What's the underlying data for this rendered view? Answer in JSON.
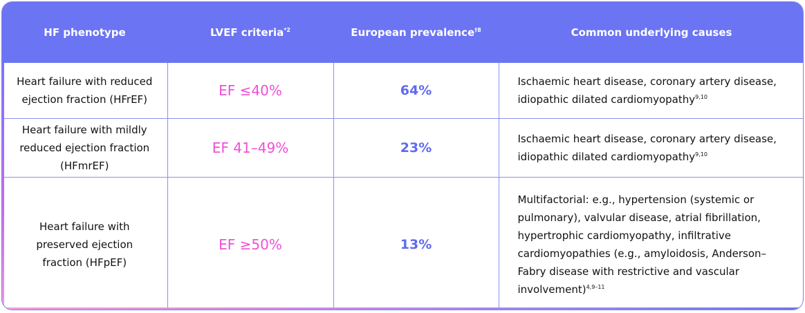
{
  "headers": [
    {
      "text": "HF phenotype",
      "sup": ""
    },
    {
      "text": "LVEF criteria",
      "sup": "*2"
    },
    {
      "text": "European prevalence",
      "sup": "†8"
    },
    {
      "text": "Common underlying causes",
      "sup": ""
    }
  ],
  "rows": [
    {
      "phenotype": "Heart failure with reduced ejection fraction (HFrEF)",
      "lvef": "EF ≤40%",
      "prevalence": "64%",
      "causes": "Ischaemic heart disease, coronary artery disease, idiopathic dilated cardiomyopathy",
      "causes_sup": "9,10"
    },
    {
      "phenotype": "Heart failure with mildly reduced ejection fraction (HFmrEF)",
      "lvef": "EF 41–49%",
      "prevalence": "23%",
      "causes": "Ischaemic heart disease, coronary artery disease, idiopathic dilated cardiomyopathy",
      "causes_sup": "9,10"
    },
    {
      "phenotype": "Heart failure with preserved ejection fraction (HFpEF)",
      "lvef": "EF ≥50%",
      "prevalence": "13%",
      "causes": "Multifactorial: e.g., hypertension (systemic or pulmonary), valvular disease, atrial fibrillation, hypertrophic cardiomyopathy, infiltrative cardiomyopathies (e.g., amyloidosis, Anderson–Fabry disease with restrictive and vascular involvement)",
      "causes_sup": "4,9–11"
    }
  ],
  "colors": {
    "header_bg": "#6b74f2",
    "ef_text": "#f04fd6",
    "prevalence_text": "#5f6af0",
    "grid": "#8c8ff0"
  }
}
